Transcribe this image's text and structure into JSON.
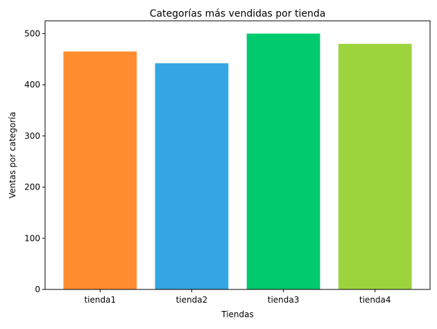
{
  "chart_data": {
    "type": "bar",
    "title": "Categorías más vendidas por tienda",
    "xlabel": "Tiendas",
    "ylabel": "Ventas por categoría",
    "categories": [
      "tienda1",
      "tienda2",
      "tienda3",
      "tienda4"
    ],
    "values": [
      465,
      442,
      500,
      480
    ],
    "colors": [
      "#ff8c2e",
      "#33a6e3",
      "#00c96e",
      "#9bd43c"
    ],
    "ylim": [
      0,
      525
    ],
    "yticks": [
      0,
      100,
      200,
      300,
      400,
      500
    ],
    "grid": false,
    "legend": "none"
  }
}
